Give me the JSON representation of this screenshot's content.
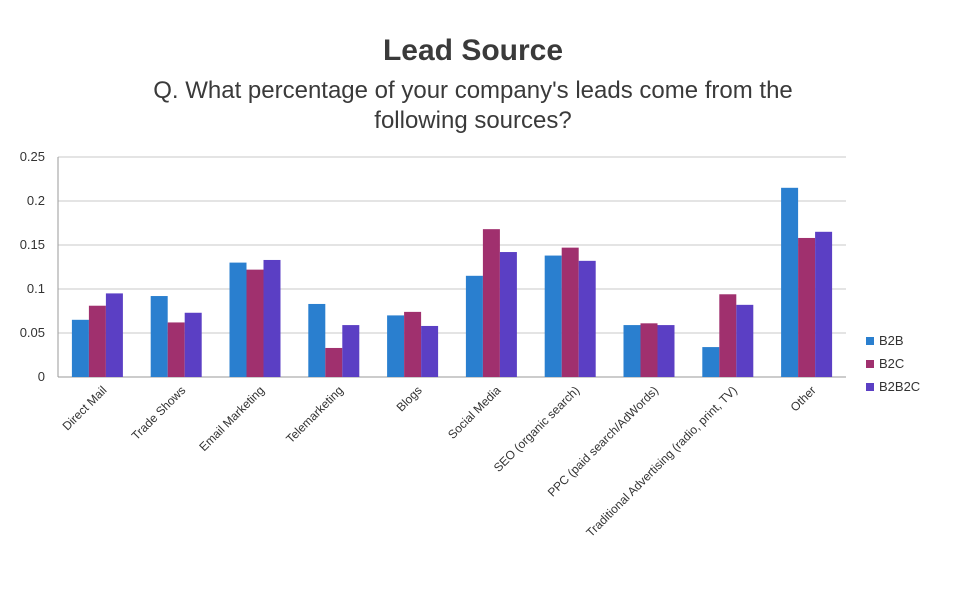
{
  "chart_data": {
    "type": "bar",
    "title": "Lead Source",
    "subtitle_lines": [
      "Q. What percentage of your company's leads come from the",
      "following sources?"
    ],
    "xlabel": "",
    "ylabel": "",
    "ylim": [
      0,
      0.25
    ],
    "yticks": [
      "0",
      "0.05",
      "0.1",
      "0.15",
      "0.2",
      "0.25"
    ],
    "ytick_values": [
      0,
      0.05,
      0.1,
      0.15,
      0.2,
      0.25
    ],
    "grid": true,
    "legend_position": "right",
    "categories": [
      "Direct Mail",
      "Trade Shows",
      "Email Marketing",
      "Telemarketing",
      "Blogs",
      "Social Media",
      "SEO (organic search)",
      "PPC (paid search/AdWords)",
      "Traditional Advertising (radio, print, TV)",
      "Other"
    ],
    "series": [
      {
        "name": "B2B",
        "color": "#2a7fcf",
        "values": [
          0.065,
          0.092,
          0.13,
          0.083,
          0.07,
          0.115,
          0.138,
          0.059,
          0.034,
          0.215
        ]
      },
      {
        "name": "B2C",
        "color": "#a0306e",
        "values": [
          0.081,
          0.062,
          0.122,
          0.033,
          0.074,
          0.168,
          0.147,
          0.061,
          0.094,
          0.158
        ]
      },
      {
        "name": "B2B2C",
        "color": "#5b3fc4",
        "values": [
          0.095,
          0.073,
          0.133,
          0.059,
          0.058,
          0.142,
          0.132,
          0.059,
          0.082,
          0.165
        ]
      }
    ]
  }
}
